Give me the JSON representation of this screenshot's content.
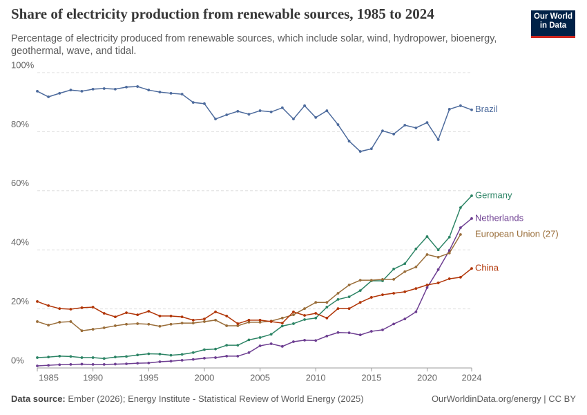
{
  "chart_data": {
    "type": "line",
    "title": "Share of electricity production from renewable sources, 1985 to 2024",
    "subtitle": "Percentage of electricity produced from renewable sources, which include solar, wind, hydropower, bioenergy, geothermal, wave, and tidal.",
    "logo": [
      "Our World",
      "in Data"
    ],
    "source_label": "Data source:",
    "source": "Ember (2026); Energy Institute - Statistical Review of World Energy (2025)",
    "url": "OurWorldinData.org/energy | CC BY",
    "x": [
      1985,
      1986,
      1987,
      1988,
      1989,
      1990,
      1991,
      1992,
      1993,
      1994,
      1995,
      1996,
      1997,
      1998,
      1999,
      2000,
      2001,
      2002,
      2003,
      2004,
      2005,
      2006,
      2007,
      2008,
      2009,
      2010,
      2011,
      2012,
      2013,
      2014,
      2015,
      2016,
      2017,
      2018,
      2019,
      2020,
      2021,
      2022,
      2023,
      2024
    ],
    "xlim": [
      1985,
      2024
    ],
    "xticks": [
      1985,
      1990,
      1995,
      2000,
      2005,
      2010,
      2015,
      2020,
      2024
    ],
    "ylim": [
      0,
      100
    ],
    "yticks": [
      {
        "value": 0,
        "label": "0%"
      },
      {
        "value": 20,
        "label": "20%"
      },
      {
        "value": 40,
        "label": "40%"
      },
      {
        "value": 60,
        "label": "60%"
      },
      {
        "value": 80,
        "label": "80%"
      },
      {
        "value": 100,
        "label": "100%"
      }
    ],
    "grid": true,
    "series": [
      {
        "name": "Brazil",
        "color": "#4c6a9c",
        "values": [
          93.7,
          91.8,
          93.0,
          94.1,
          93.7,
          94.4,
          94.6,
          94.4,
          95.1,
          95.3,
          94.1,
          93.4,
          93.0,
          92.7,
          89.9,
          89.5,
          84.3,
          85.7,
          86.9,
          85.9,
          87.1,
          86.7,
          88.1,
          84.3,
          88.8,
          84.8,
          87.1,
          82.4,
          76.8,
          73.3,
          74.2,
          80.3,
          79.2,
          82.2,
          81.3,
          83.1,
          77.3,
          87.6,
          88.8,
          87.4
        ]
      },
      {
        "name": "Germany",
        "color": "#2c8465",
        "values": [
          3.5,
          3.7,
          4.0,
          3.9,
          3.5,
          3.5,
          3.2,
          3.7,
          3.9,
          4.4,
          4.8,
          4.7,
          4.3,
          4.6,
          5.2,
          6.2,
          6.4,
          7.7,
          7.7,
          9.5,
          10.3,
          11.4,
          14.2,
          15.0,
          16.4,
          16.9,
          20.6,
          23.2,
          24.1,
          26.2,
          29.5,
          29.5,
          33.5,
          35.3,
          40.3,
          44.5,
          40.0,
          44.3,
          54.3,
          58.3
        ]
      },
      {
        "name": "Netherlands",
        "color": "#6d3e91",
        "values": [
          0.7,
          0.9,
          1.1,
          1.2,
          1.3,
          1.2,
          1.2,
          1.3,
          1.4,
          1.6,
          1.7,
          2.1,
          2.3,
          2.6,
          2.9,
          3.3,
          3.5,
          4.0,
          4.0,
          5.2,
          7.5,
          8.2,
          7.3,
          8.9,
          9.4,
          9.3,
          10.8,
          12.0,
          11.9,
          11.2,
          12.4,
          12.9,
          14.9,
          16.6,
          19.0,
          27.2,
          33.3,
          39.8,
          47.5,
          50.6
        ]
      },
      {
        "name": "European Union (27)",
        "color": "#996d39",
        "values": [
          15.7,
          14.5,
          15.5,
          15.7,
          12.6,
          13.1,
          13.6,
          14.3,
          14.8,
          15.0,
          14.8,
          14.1,
          14.8,
          15.2,
          15.2,
          15.7,
          16.2,
          14.3,
          14.3,
          15.5,
          15.5,
          15.9,
          16.9,
          18.0,
          20.1,
          22.2,
          22.2,
          25.3,
          28.1,
          29.7,
          29.7,
          30.0,
          30.0,
          32.6,
          34.2,
          38.4,
          37.5,
          38.9,
          45.2,
          null
        ]
      },
      {
        "name": "China",
        "color": "#b13507",
        "values": [
          22.5,
          21.1,
          20.1,
          19.9,
          20.4,
          20.6,
          18.5,
          17.3,
          18.7,
          18.0,
          19.2,
          17.6,
          17.6,
          17.3,
          16.2,
          16.6,
          19.0,
          17.6,
          15.0,
          16.2,
          16.2,
          15.7,
          15.2,
          19.0,
          17.8,
          18.5,
          16.9,
          20.1,
          20.1,
          22.2,
          23.9,
          24.8,
          25.3,
          25.8,
          26.9,
          28.1,
          28.8,
          30.2,
          30.7,
          33.7
        ]
      }
    ]
  }
}
